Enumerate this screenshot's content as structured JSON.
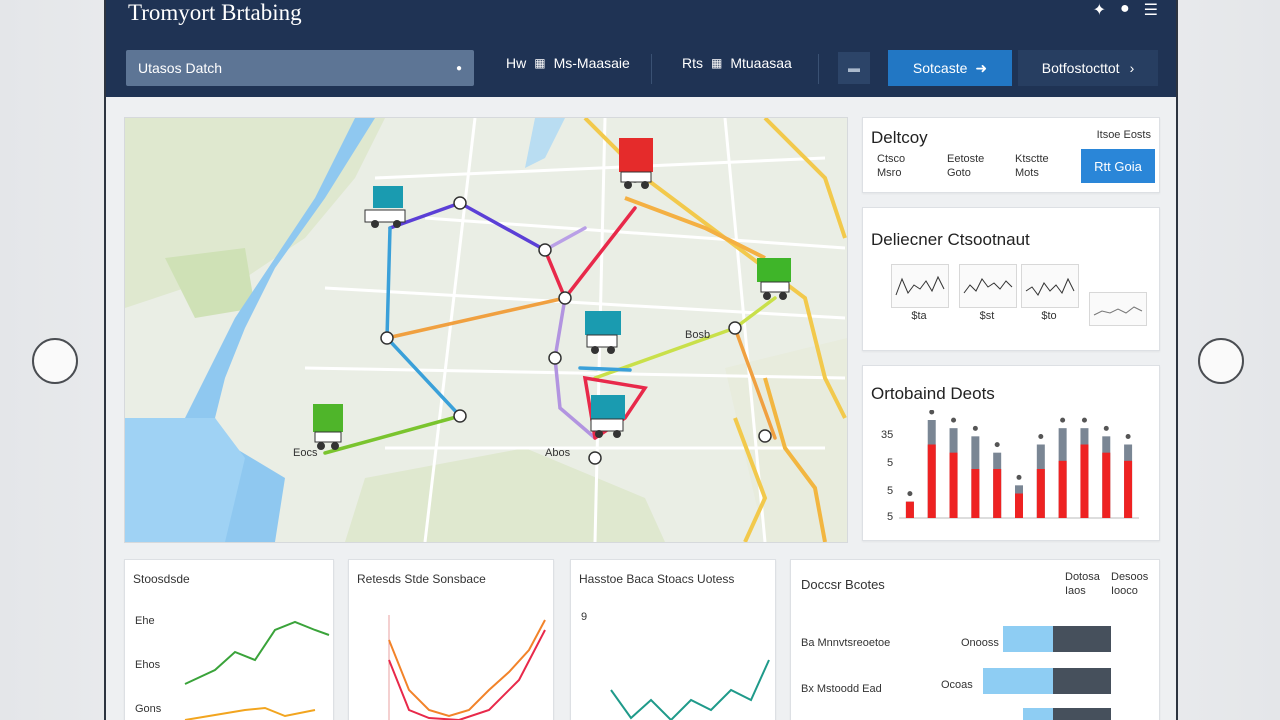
{
  "app": {
    "title": "Tromyort Brtabing"
  },
  "topbar_icons": [
    "pin-icon",
    "bell-icon",
    "menu-icon"
  ],
  "toolbar": {
    "search_value": "Utasos Datch",
    "filter1_label": "Hw",
    "filter1_value": "Ms-Maasaie",
    "filter2_label": "Rts",
    "filter2_value": "Mtuaasaa",
    "secondary_label": "Sotcaste",
    "dark_label": "Botfostocttot"
  },
  "deliveries": {
    "title": "Deltcoy",
    "right_label": "Itsoe Eosts",
    "cols": [
      {
        "line1": "Ctsco",
        "line2": "Msro"
      },
      {
        "line1": "Eetoste",
        "line2": "Goto"
      },
      {
        "line1": "Ktsctte",
        "line2": "Mots"
      }
    ],
    "button_label": "Rtt Goia"
  },
  "delivery_status": {
    "title": "Deliecner Ctsootnaut",
    "labels": [
      "$ta",
      "$st",
      "$to"
    ]
  },
  "orders": {
    "title": "Ortobaind Deots",
    "ticks": [
      "35",
      "5",
      "5",
      "5"
    ],
    "chart_data": {
      "type": "bar",
      "bar_values": [
        2,
        9,
        8,
        6,
        6,
        3,
        6,
        7,
        9,
        8,
        7
      ],
      "cap_values": [
        2,
        12,
        11,
        10,
        8,
        4,
        9,
        11,
        11,
        10,
        9
      ],
      "colors": {
        "bar": "#ee2222",
        "cap": "#7a8694"
      }
    }
  },
  "bottom": {
    "card1": {
      "title": "Stoosdsde",
      "ticks": [
        "Ehe",
        "Ehos",
        "Gons"
      ]
    },
    "card2": {
      "title": "Retesds Stde Sonsbace"
    },
    "card3": {
      "title": "Hasstoe Baca Stoacs Uotess",
      "tick": "9"
    },
    "card4": {
      "title": "Doccsr Bcotes",
      "col1": {
        "line1": "Dotosa",
        "line2": "Iaos"
      },
      "col2": {
        "line1": "Desoos",
        "line2": "Iooco"
      },
      "rows": [
        {
          "label": "Ba Mnnvtsreoetoe",
          "tag": "Onooss"
        },
        {
          "label": "Bx Mstoodd Ead",
          "tag": "Ocoas"
        }
      ]
    }
  },
  "map_labels": [
    "Eocs",
    "Abos",
    "Bosb"
  ]
}
